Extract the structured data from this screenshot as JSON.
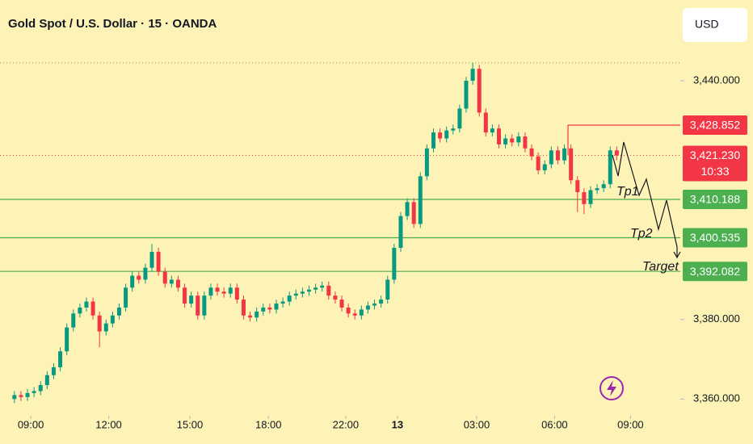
{
  "chart_data": {
    "type": "candlestick",
    "title": "Gold Spot / U.S. Dollar · 15 · OANDA",
    "currency": "USD",
    "up_color": "#089981",
    "down_color": "#f23645",
    "ylim": [
      3355.8,
      3460.3
    ],
    "yticks": [
      {
        "value": 3360,
        "label": "3,360.000"
      },
      {
        "value": 3380,
        "label": "3,380.000"
      },
      {
        "value": 3440,
        "label": "3,440.000"
      }
    ],
    "xlim": [
      -2.2,
      101.7
    ],
    "xticks": [
      {
        "value": 2.5,
        "label": "09:00"
      },
      {
        "value": 14.4,
        "label": "12:00"
      },
      {
        "value": 26.8,
        "label": "15:00"
      },
      {
        "value": 38.8,
        "label": "18:00"
      },
      {
        "value": 50.6,
        "label": "22:00"
      },
      {
        "value": 58.5,
        "label": "13"
      },
      {
        "value": 70.6,
        "label": "03:00"
      },
      {
        "value": 82.5,
        "label": "06:00"
      },
      {
        "value": 94.1,
        "label": "09:00"
      }
    ],
    "open": [
      3360,
      3361,
      3360.5,
      3361.5,
      3362,
      3363.5,
      3366,
      3368,
      3372,
      3378,
      3381.5,
      3383,
      3384.5,
      3381,
      3377,
      3379,
      3381,
      3383,
      3388,
      3391,
      3390,
      3393,
      3397,
      3392,
      3389,
      3390,
      3388,
      3384,
      3386,
      3381,
      3386,
      3388,
      3387,
      3386.5,
      3388,
      3385,
      3381,
      3380.5,
      3382,
      3383,
      3382.5,
      3384,
      3384.5,
      3386,
      3386.5,
      3387,
      3387.5,
      3388,
      3388.5,
      3386,
      3385,
      3383,
      3381.5,
      3381,
      3382.5,
      3383.5,
      3384,
      3385,
      3390,
      3398,
      3406,
      3409.5,
      3404,
      3416,
      3423,
      3427,
      3425.5,
      3427.5,
      3428,
      3433,
      3440,
      3443,
      3432,
      3427,
      3428,
      3424,
      3425.5,
      3424.5,
      3426,
      3423,
      3421,
      3417.5,
      3419,
      3422.5,
      3420,
      3423,
      3415,
      3412,
      3409,
      3412.5,
      3413,
      3414,
      3422.5
    ],
    "high": [
      3362,
      3362,
      3362.5,
      3363,
      3364.5,
      3367,
      3369,
      3373,
      3379,
      3382.5,
      3384,
      3385.5,
      3385.5,
      3382,
      3380,
      3382,
      3384,
      3389,
      3392,
      3392,
      3394,
      3399,
      3398,
      3393,
      3391,
      3391,
      3389,
      3387,
      3387,
      3387,
      3389,
      3389,
      3388,
      3389,
      3389,
      3386,
      3382,
      3383,
      3384,
      3384,
      3385,
      3385.5,
      3387,
      3387.5,
      3388,
      3388.5,
      3389,
      3389.5,
      3389.5,
      3387,
      3386,
      3384,
      3382.5,
      3383.5,
      3384.5,
      3385,
      3386,
      3391,
      3399,
      3407,
      3410.5,
      3410.5,
      3417,
      3424,
      3428,
      3428,
      3428.5,
      3429,
      3434,
      3441,
      3444.5,
      3444,
      3433,
      3429,
      3429,
      3426.5,
      3426.5,
      3427,
      3427,
      3424,
      3422,
      3420,
      3423.5,
      3423.5,
      3424,
      3424,
      3416,
      3413,
      3413.5,
      3414,
      3415,
      3423.5,
      3423.5
    ],
    "low": [
      3359,
      3359.5,
      3359.5,
      3360.5,
      3361,
      3362.5,
      3365,
      3367,
      3371,
      3377,
      3380.5,
      3382,
      3380,
      3373,
      3376,
      3378,
      3380,
      3382,
      3387,
      3389,
      3389,
      3392,
      3391,
      3388,
      3388,
      3387,
      3383,
      3383,
      3380,
      3380,
      3385,
      3386,
      3385.5,
      3385.5,
      3384,
      3380,
      3379.5,
      3379.5,
      3381,
      3381.5,
      3381.5,
      3383,
      3383.5,
      3385,
      3385.5,
      3386,
      3386.5,
      3387,
      3385,
      3384,
      3382,
      3380.5,
      3380,
      3380,
      3381.5,
      3382.5,
      3383,
      3384,
      3389,
      3397,
      3405,
      3403,
      3403,
      3415,
      3422,
      3424.5,
      3424.5,
      3426.5,
      3427,
      3432,
      3439,
      3431,
      3426,
      3426,
      3423,
      3423,
      3423.5,
      3423.5,
      3422,
      3420,
      3416.5,
      3416.5,
      3418,
      3419,
      3419,
      3414,
      3407,
      3406.5,
      3408,
      3411.5,
      3412,
      3413,
      3420
    ],
    "close": [
      3361,
      3360.5,
      3361.5,
      3362,
      3363.5,
      3366,
      3368,
      3372,
      3378,
      3381.5,
      3383,
      3384.5,
      3381,
      3377,
      3379,
      3381,
      3383,
      3388,
      3391,
      3390,
      3393,
      3397,
      3392,
      3389,
      3390,
      3388,
      3384,
      3386,
      3381,
      3386,
      3388,
      3387,
      3386.5,
      3388,
      3385,
      3381,
      3380.5,
      3382,
      3383,
      3382.5,
      3384,
      3384.5,
      3386,
      3386.5,
      3387,
      3387.5,
      3388,
      3388.5,
      3386,
      3385,
      3383,
      3381.5,
      3381,
      3382.5,
      3383.5,
      3384,
      3385,
      3390,
      3398,
      3406,
      3409.5,
      3404,
      3416,
      3423,
      3427,
      3425.5,
      3427.5,
      3428,
      3433,
      3440,
      3443,
      3432,
      3427,
      3428,
      3424,
      3425.5,
      3424.5,
      3426,
      3423,
      3421,
      3417.5,
      3419,
      3422.5,
      3420,
      3423,
      3415,
      3412,
      3409,
      3412.5,
      3413,
      3414,
      3422.5,
      3421.23
    ],
    "levels": [
      {
        "value": 3428.852,
        "label": "3,428.852",
        "color": "#f23645"
      },
      {
        "value": 3410.188,
        "label": "3,410.188",
        "color": "#4caf50"
      },
      {
        "value": 3400.535,
        "label": "3,400.535",
        "color": "#4caf50"
      },
      {
        "value": 3392.082,
        "label": "3,392.082",
        "color": "#4caf50"
      }
    ],
    "last_price": {
      "value": 3421.23,
      "label": "3,421.230",
      "countdown": "10:33",
      "color": "#f23645"
    },
    "annotations": [
      "Tp1",
      "Tp2",
      "Target"
    ]
  }
}
